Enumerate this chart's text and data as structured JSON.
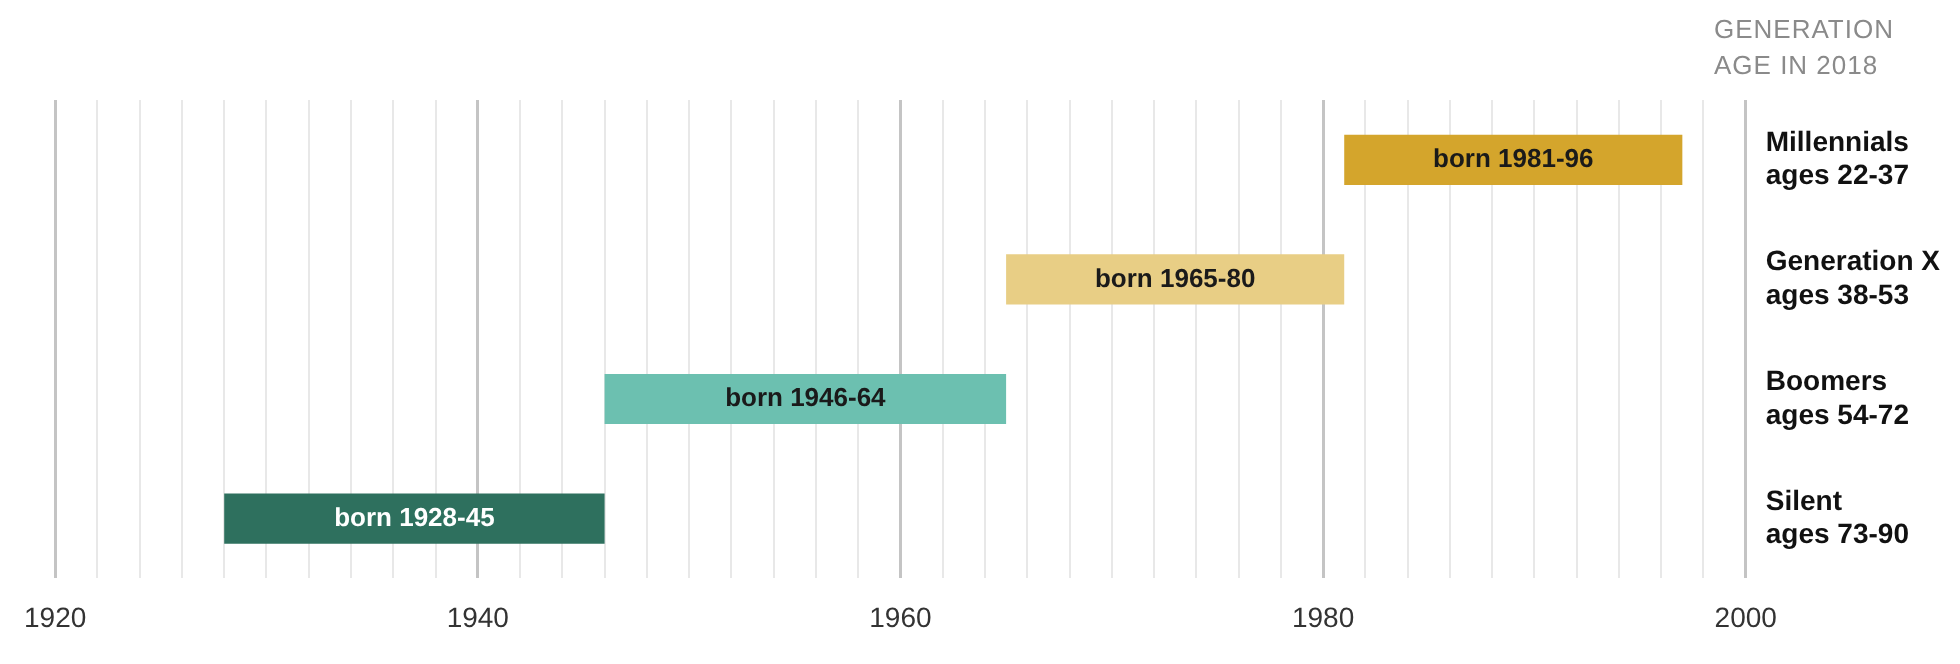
{
  "chart_data": {
    "type": "bar",
    "orientation": "horizontal",
    "ylabel": "GENERATION AGE IN 2018",
    "categories": [
      "Millennials\nages 22-37",
      "Generation X\nages 38-53",
      "Boomers\nages 54-72",
      "Silent\nages 73-90"
    ],
    "base": [
      1981,
      1965,
      1946,
      1928
    ],
    "values": [
      16,
      16,
      19,
      18
    ],
    "colors": [
      "#d4a52c",
      "#e8ce85",
      "#6cc0b0",
      "#2e705e"
    ],
    "value_labels": [
      "born 1981-96",
      "born 1965-80",
      "born 1946-64",
      "born 1928-45"
    ],
    "xlim": [
      1920,
      2000
    ],
    "xticks": [
      1920,
      {
        "value": 1922,
        "label": null
      },
      {
        "value": 1924,
        "label": null
      },
      {
        "value": 1926,
        "label": null
      },
      {
        "value": 1928,
        "label": null
      },
      {
        "value": 1930,
        "label": null
      },
      {
        "value": 1932,
        "label": null
      },
      {
        "value": 1934,
        "label": null
      },
      {
        "value": 1936,
        "label": null
      },
      {
        "value": 1938,
        "label": null
      },
      1940,
      {
        "value": 1942,
        "label": null
      },
      {
        "value": 1944,
        "label": null
      },
      {
        "value": 1946,
        "label": null
      },
      {
        "value": 1948,
        "label": null
      },
      {
        "value": 1950,
        "label": null
      },
      {
        "value": 1952,
        "label": null
      },
      {
        "value": 1954,
        "label": null
      },
      {
        "value": 1956,
        "label": null
      },
      {
        "value": 1958,
        "label": null
      },
      1960,
      {
        "value": 1962,
        "label": null
      },
      {
        "value": 1964,
        "label": null
      },
      {
        "value": 1966,
        "label": null
      },
      {
        "value": 1968,
        "label": null
      },
      {
        "value": 1970,
        "label": null
      },
      {
        "value": 1972,
        "label": null
      },
      {
        "value": 1974,
        "label": null
      },
      {
        "value": 1976,
        "label": null
      },
      {
        "value": 1978,
        "label": null
      },
      1980,
      {
        "value": 1982,
        "label": null
      },
      {
        "value": 1984,
        "label": null
      },
      {
        "value": 1986,
        "label": null
      },
      {
        "value": 1988,
        "label": null
      },
      {
        "value": 1990,
        "label": null
      },
      {
        "value": 1992,
        "label": null
      },
      {
        "value": 1994,
        "label": null
      },
      {
        "value": 1996,
        "label": null
      },
      {
        "value": 1998,
        "label": null
      },
      2000
    ],
    "grid": "x",
    "legend": false
  }
}
